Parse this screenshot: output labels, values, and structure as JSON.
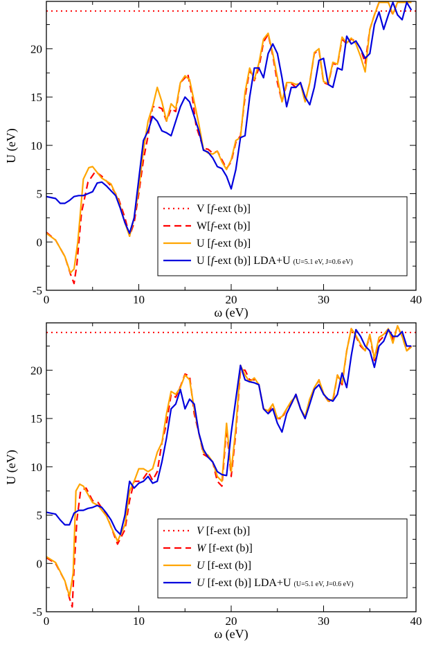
{
  "chart_data": [
    {
      "type": "line",
      "panel": "top",
      "xlabel": "ω (eV)",
      "ylabel": "U (eV)",
      "xlim": [
        0,
        40
      ],
      "ylim": [
        -5,
        24.9
      ],
      "xticks": [
        "0",
        "10",
        "20",
        "30",
        "40"
      ],
      "yticks": [
        "-5",
        "0",
        "5",
        "10",
        "15",
        "20"
      ],
      "legend": {
        "placement": "bottom-right",
        "entries": [
          {
            "label": "V [",
            "ital": "f",
            "rest": "-ext (b)]",
            "small": ""
          },
          {
            "label": "W[",
            "ital": "f",
            "rest": "-ext (b)]",
            "small": ""
          },
          {
            "label": "U [",
            "ital": "f",
            "rest": "-ext (b)]",
            "small": ""
          },
          {
            "label": "U [",
            "ital": "f",
            "rest": "-ext (b)] LDA+U ",
            "small": "(U=5.1 eV, J=0.6 eV)"
          }
        ]
      },
      "series": [
        {
          "name": "V [f-ext (b)]",
          "color": "#ff0000",
          "style": "dotted",
          "x": [
            0,
            40
          ],
          "y": [
            23.9,
            23.9
          ]
        },
        {
          "name": "W[f-ext (b)]",
          "color": "#ff0000",
          "style": "dashed",
          "x": [
            0,
            1,
            2,
            2.6,
            3,
            3.3,
            3.8,
            4.5,
            5.3,
            6,
            7,
            7.8,
            8.5,
            9,
            9.5,
            10,
            10.5,
            11,
            11.5,
            12,
            12.5,
            13,
            13.5,
            14,
            14.5,
            15,
            15.3,
            15.8,
            16.2,
            17,
            17.5,
            18,
            18.5,
            19,
            19.5,
            20,
            20.5,
            21,
            21.5,
            22,
            22.5,
            23,
            23.5,
            24,
            24.5,
            25,
            25.5,
            26,
            26.5,
            27,
            27.5,
            28,
            28.5,
            29,
            29.5,
            30,
            30.5,
            31,
            31.5,
            32,
            32.5,
            33,
            33.5,
            34,
            34.5,
            35,
            35.5,
            36,
            36.5,
            37,
            37.5,
            38,
            38.5,
            39,
            39.5
          ],
          "y": [
            1,
            0.2,
            -1.5,
            -3.3,
            -4.3,
            -2.3,
            3,
            6.2,
            7.3,
            6.8,
            5.8,
            4.5,
            2.5,
            0.6,
            2,
            5,
            8.5,
            11,
            14,
            14,
            13.8,
            12.5,
            13.8,
            13.5,
            16.5,
            17,
            17.4,
            15,
            12,
            9.7,
            9.6,
            9.2,
            9.4,
            8.5,
            7.6,
            8.3,
            10.3,
            11,
            15,
            17.8,
            16.7,
            18,
            20.7,
            21.5,
            19.3,
            16.5,
            14.5,
            16.3,
            16.4,
            16,
            16.5,
            14.5,
            16.5,
            19.5,
            19.9,
            16.5,
            16.3,
            18.5,
            18.3,
            21,
            20.5,
            21,
            20.8,
            20,
            18.5,
            22,
            23.5,
            24.8,
            24.8,
            24.8,
            23.5,
            24.8,
            24.8,
            24.8,
            24.8
          ]
        },
        {
          "name": "U [f-ext (b)]",
          "color": "#ffa500",
          "style": "solid",
          "x": [
            0,
            1,
            2,
            2.6,
            3,
            3.4,
            4,
            4.6,
            5,
            5.5,
            6,
            7,
            7.8,
            8.5,
            9,
            9.5,
            10,
            10.5,
            11,
            11.5,
            12,
            12.5,
            13,
            13.5,
            14,
            14.5,
            15,
            15.5,
            16,
            16.5,
            17,
            17.5,
            18,
            18.5,
            19,
            19.5,
            20,
            20.5,
            21,
            21.5,
            22,
            22.5,
            23,
            23.5,
            24,
            24.5,
            25,
            25.5,
            26,
            26.5,
            27,
            27.5,
            28,
            28.5,
            29,
            29.5,
            30,
            30.5,
            31,
            31.5,
            32,
            32.5,
            33,
            33.5,
            34,
            34.5,
            35,
            35.5,
            36,
            36.5,
            37,
            37.5,
            38,
            38.5,
            39,
            39.5
          ],
          "y": [
            0.9,
            0.2,
            -1.5,
            -3.2,
            -2.8,
            0,
            6.5,
            7.7,
            7.8,
            7.2,
            6.6,
            6,
            4.3,
            2,
            0.6,
            2.5,
            5.5,
            9.5,
            12.5,
            14,
            16,
            14.5,
            12.5,
            14.3,
            13.8,
            16.5,
            17.2,
            16.8,
            14.5,
            12.2,
            9.6,
            9.2,
            9.1,
            9.4,
            8.3,
            7.5,
            8.5,
            10.5,
            10.8,
            15.5,
            18,
            16.8,
            18.5,
            21,
            21.6,
            19.5,
            17,
            14.5,
            16.5,
            16.5,
            16.3,
            16.4,
            14.5,
            16.5,
            19.6,
            20,
            16.6,
            16.4,
            18.6,
            18.4,
            21.2,
            20.6,
            21.1,
            20.5,
            19.2,
            17.6,
            22,
            23.5,
            24.8,
            24.8,
            24.8,
            23.6,
            24.8,
            24.8,
            24.8,
            24.8
          ]
        },
        {
          "name": "U [f-ext (b)] LDA+U (U=5.1 eV, J=0.6 eV)",
          "color": "#0000dd",
          "style": "solid",
          "x": [
            0,
            1,
            1.5,
            2,
            2.5,
            3,
            3.5,
            4,
            4.5,
            5,
            5.5,
            6,
            6.5,
            7,
            7.5,
            8,
            8.5,
            9,
            9.5,
            10,
            10.5,
            11,
            11.5,
            12,
            12.5,
            13,
            13.5,
            14,
            14.5,
            15,
            15.5,
            16,
            16.5,
            17,
            17.5,
            18,
            18.5,
            19,
            19.5,
            20,
            20.5,
            21,
            21.5,
            22,
            22.5,
            23,
            23.5,
            24,
            24.5,
            25,
            25.5,
            26,
            26.5,
            27,
            27.5,
            28,
            28.5,
            29,
            29.5,
            30,
            30.5,
            31,
            31.5,
            32,
            32.5,
            33,
            33.5,
            34,
            34.5,
            35,
            35.5,
            36,
            36.5,
            37,
            37.5,
            38,
            38.5,
            39,
            39.5
          ],
          "y": [
            4.7,
            4.5,
            4.0,
            4.0,
            4.3,
            4.7,
            4.8,
            4.8,
            5.0,
            5.2,
            6.1,
            6.2,
            5.8,
            5.3,
            4.8,
            3.5,
            2.0,
            0.9,
            2.5,
            6.5,
            10.5,
            11.5,
            13.0,
            12.5,
            11.5,
            11.3,
            11.0,
            12.5,
            14.0,
            15.0,
            14.5,
            13.0,
            11.5,
            9.5,
            9.3,
            8.7,
            7.8,
            7.6,
            6.8,
            5.5,
            7.5,
            10.8,
            11.0,
            15.0,
            18.0,
            18.0,
            17.0,
            19.5,
            20.5,
            19.5,
            17.0,
            14.0,
            16.0,
            16.0,
            16.5,
            15.0,
            14.2,
            16.0,
            18.8,
            19.0,
            16.3,
            16.0,
            18.0,
            17.8,
            21.3,
            20.5,
            20.8,
            20.0,
            19.0,
            19.5,
            22.5,
            23.8,
            22.0,
            23.5,
            24.8,
            23.5,
            23.0,
            24.8,
            24.0
          ]
        }
      ]
    },
    {
      "type": "line",
      "panel": "bottom",
      "xlabel": "ω (eV)",
      "ylabel": "U (eV)",
      "xlim": [
        0,
        40
      ],
      "ylim": [
        -5,
        24.9
      ],
      "xticks": [
        "0",
        "10",
        "20",
        "30",
        "40"
      ],
      "yticks": [
        "-5",
        "0",
        "5",
        "10",
        "15",
        "20"
      ],
      "legend": {
        "placement": "bottom-right",
        "entries": [
          {
            "label": "",
            "ital": "V",
            "rest": " [f-ext (b)]",
            "small": ""
          },
          {
            "label": "",
            "ital": "W",
            "rest": " [f-ext (b)]",
            "small": ""
          },
          {
            "label": "",
            "ital": "U",
            "rest": " [f-ext (b)]",
            "small": ""
          },
          {
            "label": "",
            "ital": "U",
            "rest": " [f-ext (b)] LDA+U ",
            "small": "(U=5.1 eV, J=0.6 eV)"
          }
        ]
      },
      "series": [
        {
          "name": "V [f-ext (b)]",
          "color": "#ff0000",
          "style": "dotted",
          "x": [
            0,
            40
          ],
          "y": [
            23.9,
            23.9
          ]
        },
        {
          "name": "W [f-ext (b)]",
          "color": "#ff0000",
          "style": "dashed",
          "x": [
            0,
            1,
            2,
            2.5,
            2.8,
            3,
            3.3,
            3.7,
            4.3,
            5,
            5.6,
            6.5,
            7,
            7.7,
            8.5,
            9,
            9.5,
            10,
            10.5,
            11,
            11.5,
            12,
            12.5,
            13,
            13.5,
            14,
            14.5,
            15,
            15.5,
            16,
            16.5,
            17,
            17.5,
            18,
            18.5,
            19,
            19.5,
            20,
            20.5,
            21,
            21.5,
            22,
            22.5,
            23,
            23.5,
            24,
            24.5,
            25,
            25.5,
            26,
            26.5,
            27,
            27.5,
            28,
            28.5,
            29,
            29.5,
            30,
            30.5,
            31,
            31.5,
            32,
            32.5,
            33,
            33.5,
            34,
            34.5,
            35,
            35.5,
            36,
            36.5,
            37,
            37.5,
            38,
            38.5,
            39,
            39.5
          ],
          "y": [
            0.6,
            0,
            -1.8,
            -3.6,
            -4.5,
            -0.5,
            4.5,
            7.5,
            7.8,
            6.5,
            6.3,
            5,
            3.8,
            2,
            3.5,
            6.5,
            8.5,
            8.5,
            8.8,
            9.5,
            8.6,
            9.5,
            12.5,
            14.5,
            17.5,
            17.2,
            18.3,
            19.6,
            19.4,
            15.5,
            13.5,
            11.3,
            11.0,
            10.5,
            8.5,
            8.0,
            14.0,
            9.0,
            13.5,
            20.0,
            20.0,
            19.0,
            19.0,
            18.5,
            16.0,
            15.5,
            16.5,
            15.0,
            15.0,
            16.0,
            16.5,
            17.5,
            16.0,
            15.0,
            17.0,
            18.0,
            19.0,
            17.5,
            16.8,
            16.8,
            19.5,
            18.5,
            22.0,
            24.3,
            23.5,
            22.5,
            22.0,
            23.5,
            21.0,
            23.0,
            23.5,
            24.2,
            23.2,
            24.5,
            23.5,
            22.0,
            22.5
          ]
        },
        {
          "name": "U [f-ext (b)]",
          "color": "#ffa500",
          "style": "solid",
          "x": [
            0,
            1,
            2,
            2.5,
            2.9,
            3.2,
            3.6,
            4,
            5,
            5.6,
            6.5,
            7,
            7.7,
            8.5,
            9,
            9.5,
            10,
            10.5,
            11,
            11.5,
            12,
            12.5,
            13,
            13.5,
            14,
            14.5,
            15,
            15.5,
            16,
            16.5,
            17,
            17.5,
            18,
            18.5,
            19,
            19.5,
            20,
            20.5,
            21,
            21.5,
            22,
            22.5,
            23,
            23.5,
            24,
            24.5,
            25,
            25.5,
            26,
            26.5,
            27,
            27.5,
            28,
            28.5,
            29,
            29.5,
            30,
            30.5,
            31,
            31.5,
            32,
            32.5,
            33,
            33.5,
            34,
            34.5,
            35,
            35.5,
            36,
            36.5,
            37,
            37.5,
            38,
            38.5,
            39,
            39.5
          ],
          "y": [
            0.7,
            0.1,
            -1.8,
            -3.4,
            -1,
            7.5,
            8.2,
            8,
            6.3,
            6,
            4.9,
            3.8,
            2.3,
            4,
            7.5,
            8.5,
            9.8,
            9.8,
            9.5,
            9.8,
            11.5,
            12.5,
            15.5,
            17.8,
            17.5,
            18.2,
            19.5,
            19.0,
            16.0,
            13.5,
            11.5,
            11.2,
            10.5,
            9.0,
            8.5,
            14.5,
            9.5,
            14.0,
            20.5,
            19.5,
            18.8,
            19.2,
            18.5,
            16.0,
            15.8,
            16.5,
            15.0,
            15.2,
            16.0,
            16.8,
            17.3,
            16.0,
            15.2,
            17.0,
            18.2,
            19.0,
            17.6,
            16.8,
            17.0,
            19.5,
            18.7,
            22.0,
            24.3,
            23.6,
            22.7,
            22.0,
            23.7,
            21.2,
            23.4,
            23.7,
            24.3,
            22.8,
            24.6,
            23.5,
            22.0,
            22.4
          ]
        },
        {
          "name": "U [f-ext (b)] LDA+U (U=5.1 eV, J=0.6 eV)",
          "color": "#0000dd",
          "style": "solid",
          "x": [
            0,
            1,
            1.5,
            2,
            2.5,
            3,
            3.5,
            4,
            4.5,
            5,
            5.5,
            6,
            6.5,
            7,
            7.5,
            8,
            8.5,
            9,
            9.5,
            10,
            10.5,
            11,
            11.5,
            12,
            12.5,
            13,
            13.5,
            14,
            14.5,
            15,
            15.5,
            16,
            16.5,
            17,
            17.5,
            18,
            18.5,
            19,
            19.5,
            20,
            20.5,
            21,
            21.5,
            22,
            22.5,
            23,
            23.5,
            24,
            24.5,
            25,
            25.5,
            26,
            26.5,
            27,
            27.5,
            28,
            28.5,
            29,
            29.5,
            30,
            30.5,
            31,
            31.5,
            32,
            32.5,
            33,
            33.5,
            34,
            34.5,
            35,
            35.5,
            36,
            36.5,
            37,
            37.5,
            38,
            38.5,
            39,
            39.5
          ],
          "y": [
            5.3,
            5.1,
            4.5,
            4,
            4,
            5.2,
            5.5,
            5.5,
            5.7,
            5.8,
            6.0,
            5.8,
            5.2,
            4.5,
            3.5,
            3.0,
            5.0,
            8.5,
            7.8,
            8.3,
            8.5,
            9.0,
            8.3,
            8.5,
            10.5,
            13.0,
            16.0,
            16.5,
            18.0,
            16.0,
            17.0,
            16.5,
            13.5,
            11.8,
            11.0,
            10.5,
            9.5,
            9.2,
            9.1,
            13.5,
            17.0,
            20.5,
            19.0,
            18.8,
            18.7,
            18.5,
            16.0,
            15.5,
            16.0,
            14.5,
            13.6,
            15.5,
            16.5,
            17.5,
            16.0,
            15.0,
            16.5,
            18.0,
            18.5,
            17.5,
            17.0,
            16.8,
            17.5,
            19.7,
            18.2,
            21.5,
            24.2,
            23.5,
            22.5,
            22.0,
            20.3,
            22.5,
            23.0,
            24.2,
            23.5,
            23.5,
            24.0,
            22.5,
            22.5
          ]
        }
      ]
    }
  ]
}
